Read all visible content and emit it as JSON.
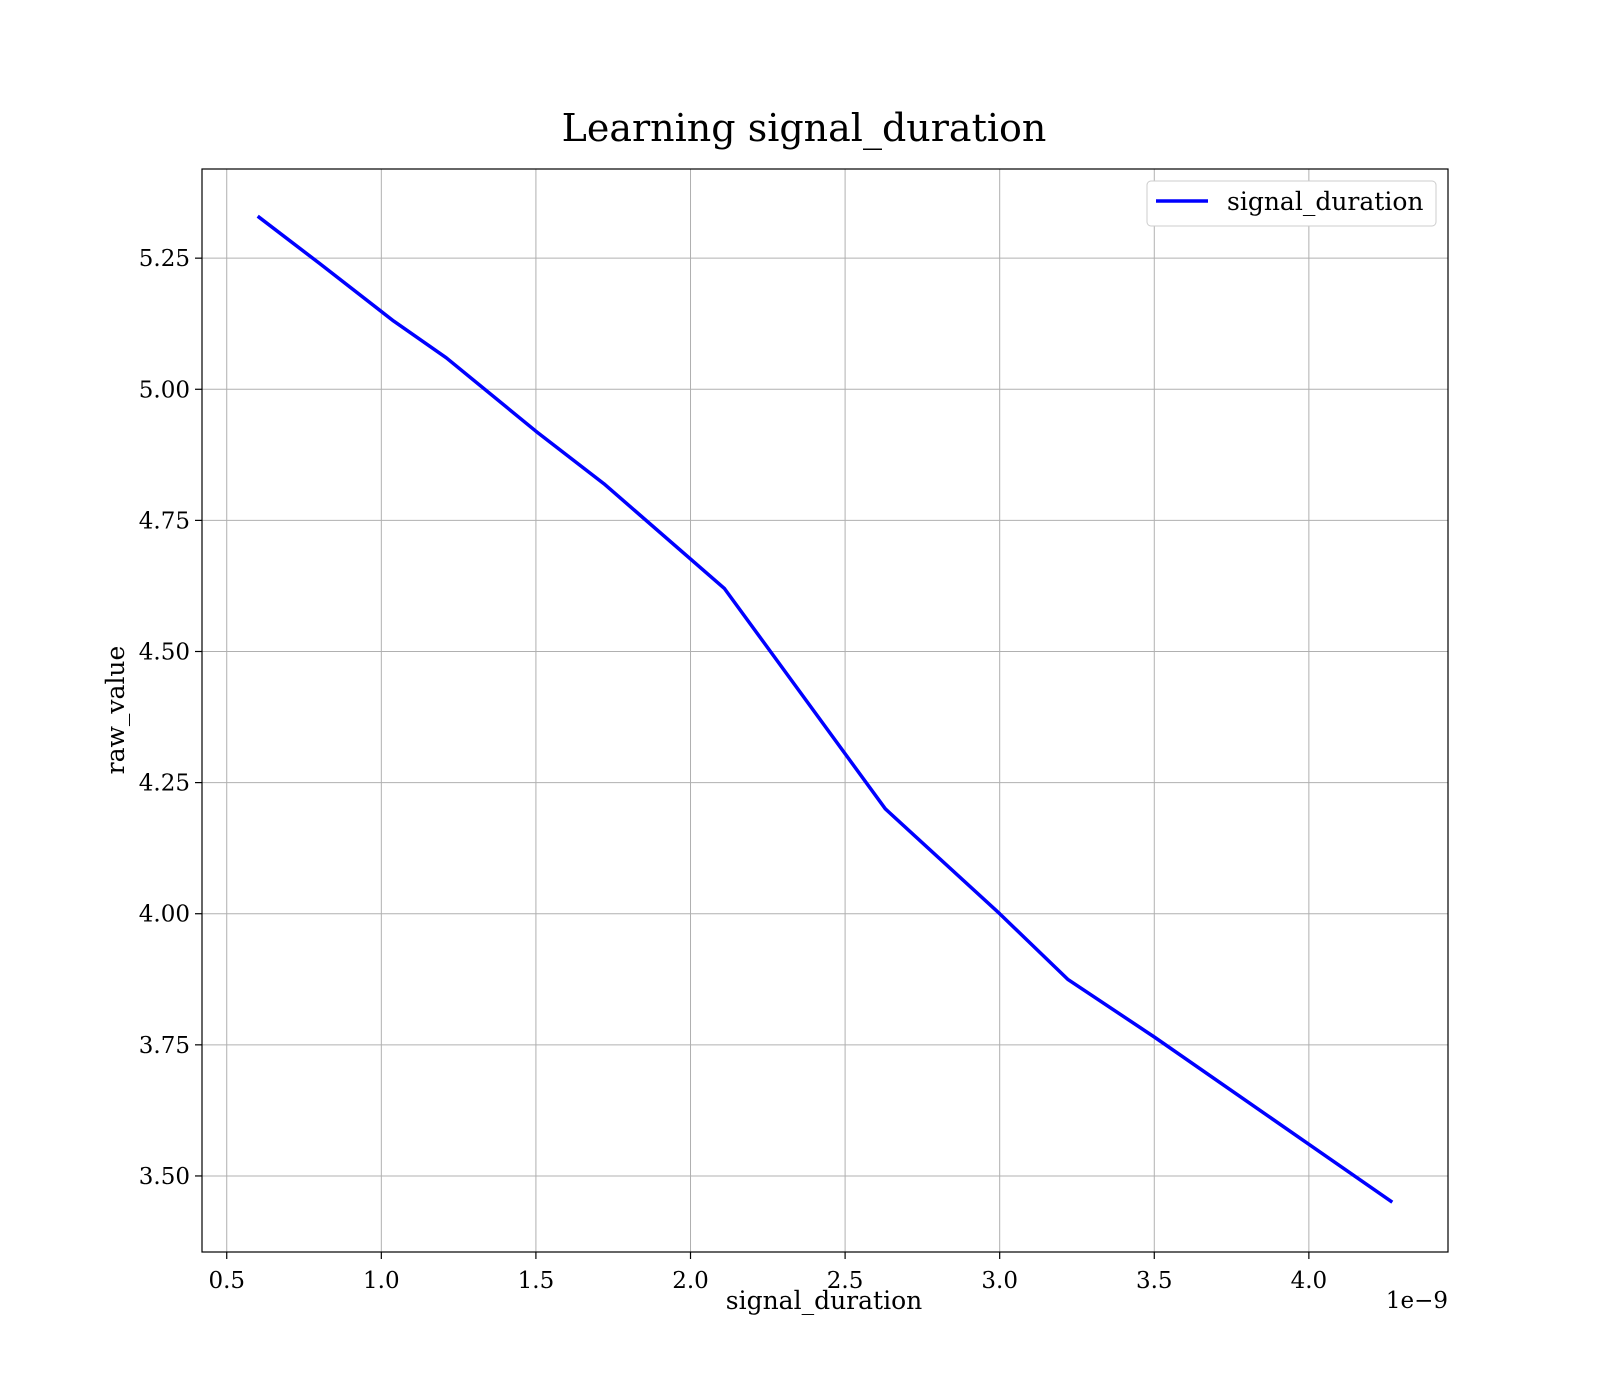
{
  "chart_data": {
    "type": "line",
    "title": "Learning signal_duration",
    "xlabel": "signal_duration",
    "ylabel": "raw_value",
    "x_offset_label": "1e−9",
    "xlim": [
      0.42,
      4.45
    ],
    "ylim": [
      3.355,
      5.42
    ],
    "grid": true,
    "legend_position": "top-right",
    "x_ticks": [
      "0.5",
      "1.0",
      "1.5",
      "2.0",
      "2.5",
      "3.0",
      "3.5",
      "4.0"
    ],
    "y_ticks": [
      "3.50",
      "3.75",
      "4.00",
      "4.25",
      "4.50",
      "4.75",
      "5.00",
      "5.25"
    ],
    "series": [
      {
        "name": "signal_duration",
        "color": "#0000ff",
        "x": [
          0.6,
          0.8,
          1.04,
          1.21,
          1.5,
          1.72,
          2.11,
          2.63,
          3.0,
          3.22,
          3.5,
          4.27
        ],
        "y": [
          5.33,
          5.24,
          5.13,
          5.06,
          4.92,
          4.82,
          4.62,
          4.2,
          4.0,
          3.875,
          3.765,
          3.45
        ]
      }
    ]
  }
}
